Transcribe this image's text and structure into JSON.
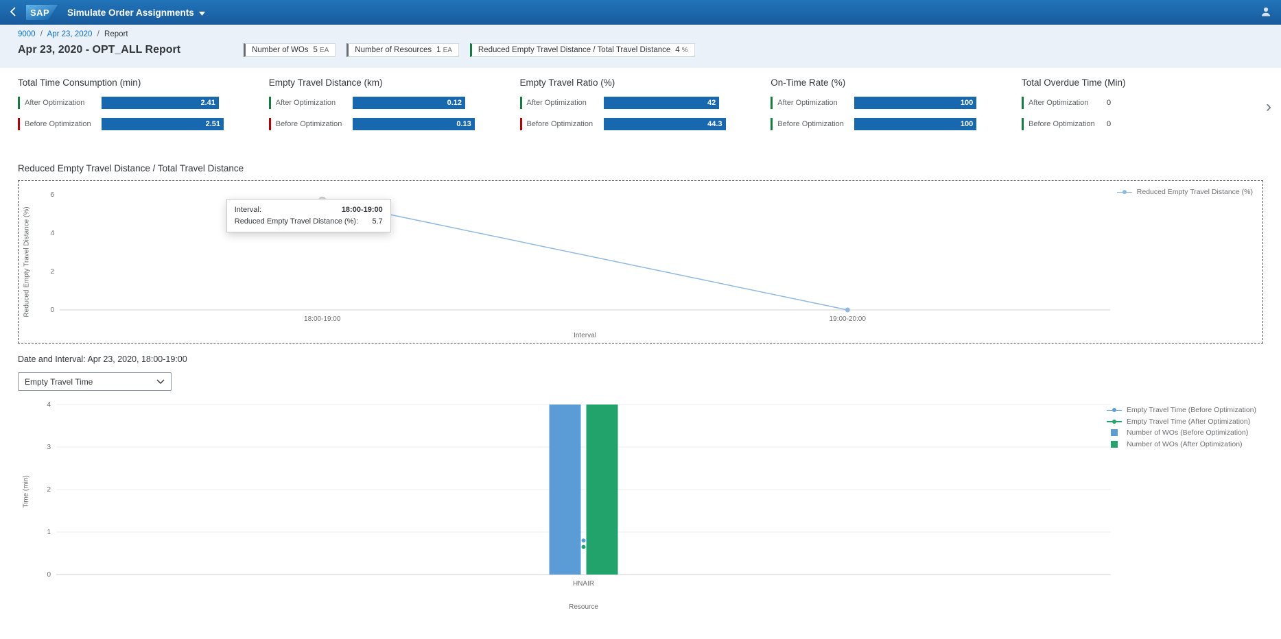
{
  "shell": {
    "logo_text": "SAP",
    "app_title": "Simulate Order Assignments"
  },
  "breadcrumb": {
    "separator": "/",
    "items": [
      {
        "label": "9000"
      },
      {
        "label": "Apr 23, 2020"
      },
      {
        "label": "Report"
      }
    ]
  },
  "header": {
    "title": "Apr 23, 2020 - OPT_ALL Report",
    "badges": [
      {
        "label": "Number of WOs",
        "value": "5",
        "unit": "EA",
        "accent": "#6a6d70"
      },
      {
        "label": "Number of Resources",
        "value": "1",
        "unit": "EA",
        "accent": "#6a6d70"
      },
      {
        "label": "Reduced Empty Travel Distance / Total Travel Distance",
        "value": "4",
        "unit": "%",
        "accent": "#107e3e"
      }
    ]
  },
  "kpis": {
    "bar_color": "#1868b0",
    "accent_colors": {
      "good": "#107e3e",
      "bad": "#bb0000"
    },
    "groups": [
      {
        "title": "Total Time Consumption (min)",
        "rows": [
          {
            "label": "After Optimization",
            "value": "2.41",
            "num": 2.41,
            "max": 2.51,
            "accent": "good"
          },
          {
            "label": "Before Optimization",
            "value": "2.51",
            "num": 2.51,
            "max": 2.51,
            "accent": "bad"
          }
        ]
      },
      {
        "title": "Empty Travel Distance (km)",
        "rows": [
          {
            "label": "After Optimization",
            "value": "0.12",
            "num": 0.12,
            "max": 0.13,
            "accent": "good"
          },
          {
            "label": "Before Optimization",
            "value": "0.13",
            "num": 0.13,
            "max": 0.13,
            "accent": "bad"
          }
        ]
      },
      {
        "title": "Empty Travel Ratio (%)",
        "rows": [
          {
            "label": "After Optimization",
            "value": "42",
            "num": 42,
            "max": 44.3,
            "accent": "good"
          },
          {
            "label": "Before Optimization",
            "value": "44.3",
            "num": 44.3,
            "max": 44.3,
            "accent": "bad"
          }
        ]
      },
      {
        "title": "On-Time Rate (%)",
        "rows": [
          {
            "label": "After Optimization",
            "value": "100",
            "num": 100,
            "max": 100,
            "accent": "good"
          },
          {
            "label": "Before Optimization",
            "value": "100",
            "num": 100,
            "max": 100,
            "accent": "good"
          }
        ]
      },
      {
        "title": "Total Overdue Time (Min)",
        "rows": [
          {
            "label": "After Optimization",
            "value": "0",
            "num": 0,
            "max": 0,
            "accent": "good"
          },
          {
            "label": "Before Optimization",
            "value": "0",
            "num": 0,
            "max": 0,
            "accent": "good"
          }
        ]
      }
    ]
  },
  "section2": {
    "date_interval": "Date and Interval: Apr 23, 2020, 18:00-19:00",
    "metric_select_value": "Empty Travel Time"
  },
  "chart_data": [
    {
      "type": "line",
      "title": "Reduced Empty Travel Distance / Total Travel Distance",
      "categories": [
        "18:00-19:00",
        "19:00-20:00"
      ],
      "series": [
        {
          "name": "Reduced Empty Travel Distance (%)",
          "values": [
            5.7,
            0
          ],
          "color": "#8fb8e4"
        }
      ],
      "xlabel": "Interval",
      "ylabel": "Reduced Empty Travel Distance (%)",
      "ylim": [
        0,
        6
      ],
      "yticks": [
        0,
        2,
        4,
        6
      ],
      "grid": false,
      "legend_position": "right",
      "tooltip": {
        "rows": [
          {
            "label": "Interval:",
            "value": "18:00-19:00"
          },
          {
            "label": "Reduced Empty Travel Distance (%):",
            "value": "5.7"
          }
        ]
      }
    },
    {
      "type": "combo",
      "categories": [
        "HNAIR"
      ],
      "bar_series": [
        {
          "name": "Number of WOs (Before Optimization)",
          "values": [
            4
          ],
          "color": "#5b9cd6"
        },
        {
          "name": "Number of WOs (After Optimization)",
          "values": [
            4
          ],
          "color": "#23a36c"
        }
      ],
      "line_series": [
        {
          "name": "Empty Travel Time (Before Optimization)",
          "values": [
            0.8
          ],
          "color": "#5b9cd6"
        },
        {
          "name": "Empty Travel Time (After Optimization)",
          "values": [
            0.65
          ],
          "color": "#23a36c"
        }
      ],
      "xlabel": "Resource",
      "ylabel": "Time (min)",
      "ylim": [
        0,
        4
      ],
      "yticks": [
        0,
        1,
        2,
        3,
        4
      ],
      "grid": true,
      "legend_position": "right"
    }
  ]
}
